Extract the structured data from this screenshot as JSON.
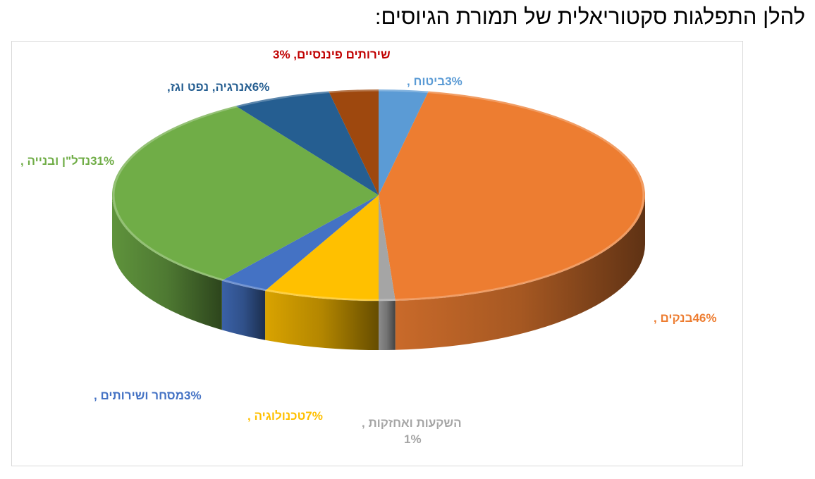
{
  "page_title": "להלן התפלגות סקטוריאלית של תמורת הגיוסים:",
  "chart_data": {
    "type": "pie",
    "style": "3d",
    "slices": [
      {
        "name": "ביטוח",
        "value": 3,
        "label": "3%ביטוח ,",
        "color": "#5B9BD5"
      },
      {
        "name": "בנקים",
        "value": 46,
        "label": "46%בנקים ,",
        "color": "#ED7D31"
      },
      {
        "name": "השקעות ואחזקות",
        "value": 1,
        "label": "השקעות ואחזקות ,",
        "label2": "1%",
        "color": "#A5A5A5"
      },
      {
        "name": "טכנולוגיה",
        "value": 7,
        "label": "7%טכנולוגיה ,",
        "color": "#FFC000"
      },
      {
        "name": "מסחר ושירותים",
        "value": 3,
        "label": "3%מסחר ושירותים ,",
        "color": "#4472C4"
      },
      {
        "name": "נדל\"ן ובנייה",
        "value": 31,
        "label": "31%נדל\"ן ובנייה ,",
        "color": "#70AD47"
      },
      {
        "name": "אנרגיה, נפט וגז",
        "value": 6,
        "label": "6%אנרגיה, נפט וגז,",
        "color": "#255E91"
      },
      {
        "name": "שירותים פיננסיים",
        "value": 3,
        "label": "שירותים פיננסיים, 3%",
        "color": "#9E480E",
        "label_color": "#C00000"
      }
    ]
  }
}
